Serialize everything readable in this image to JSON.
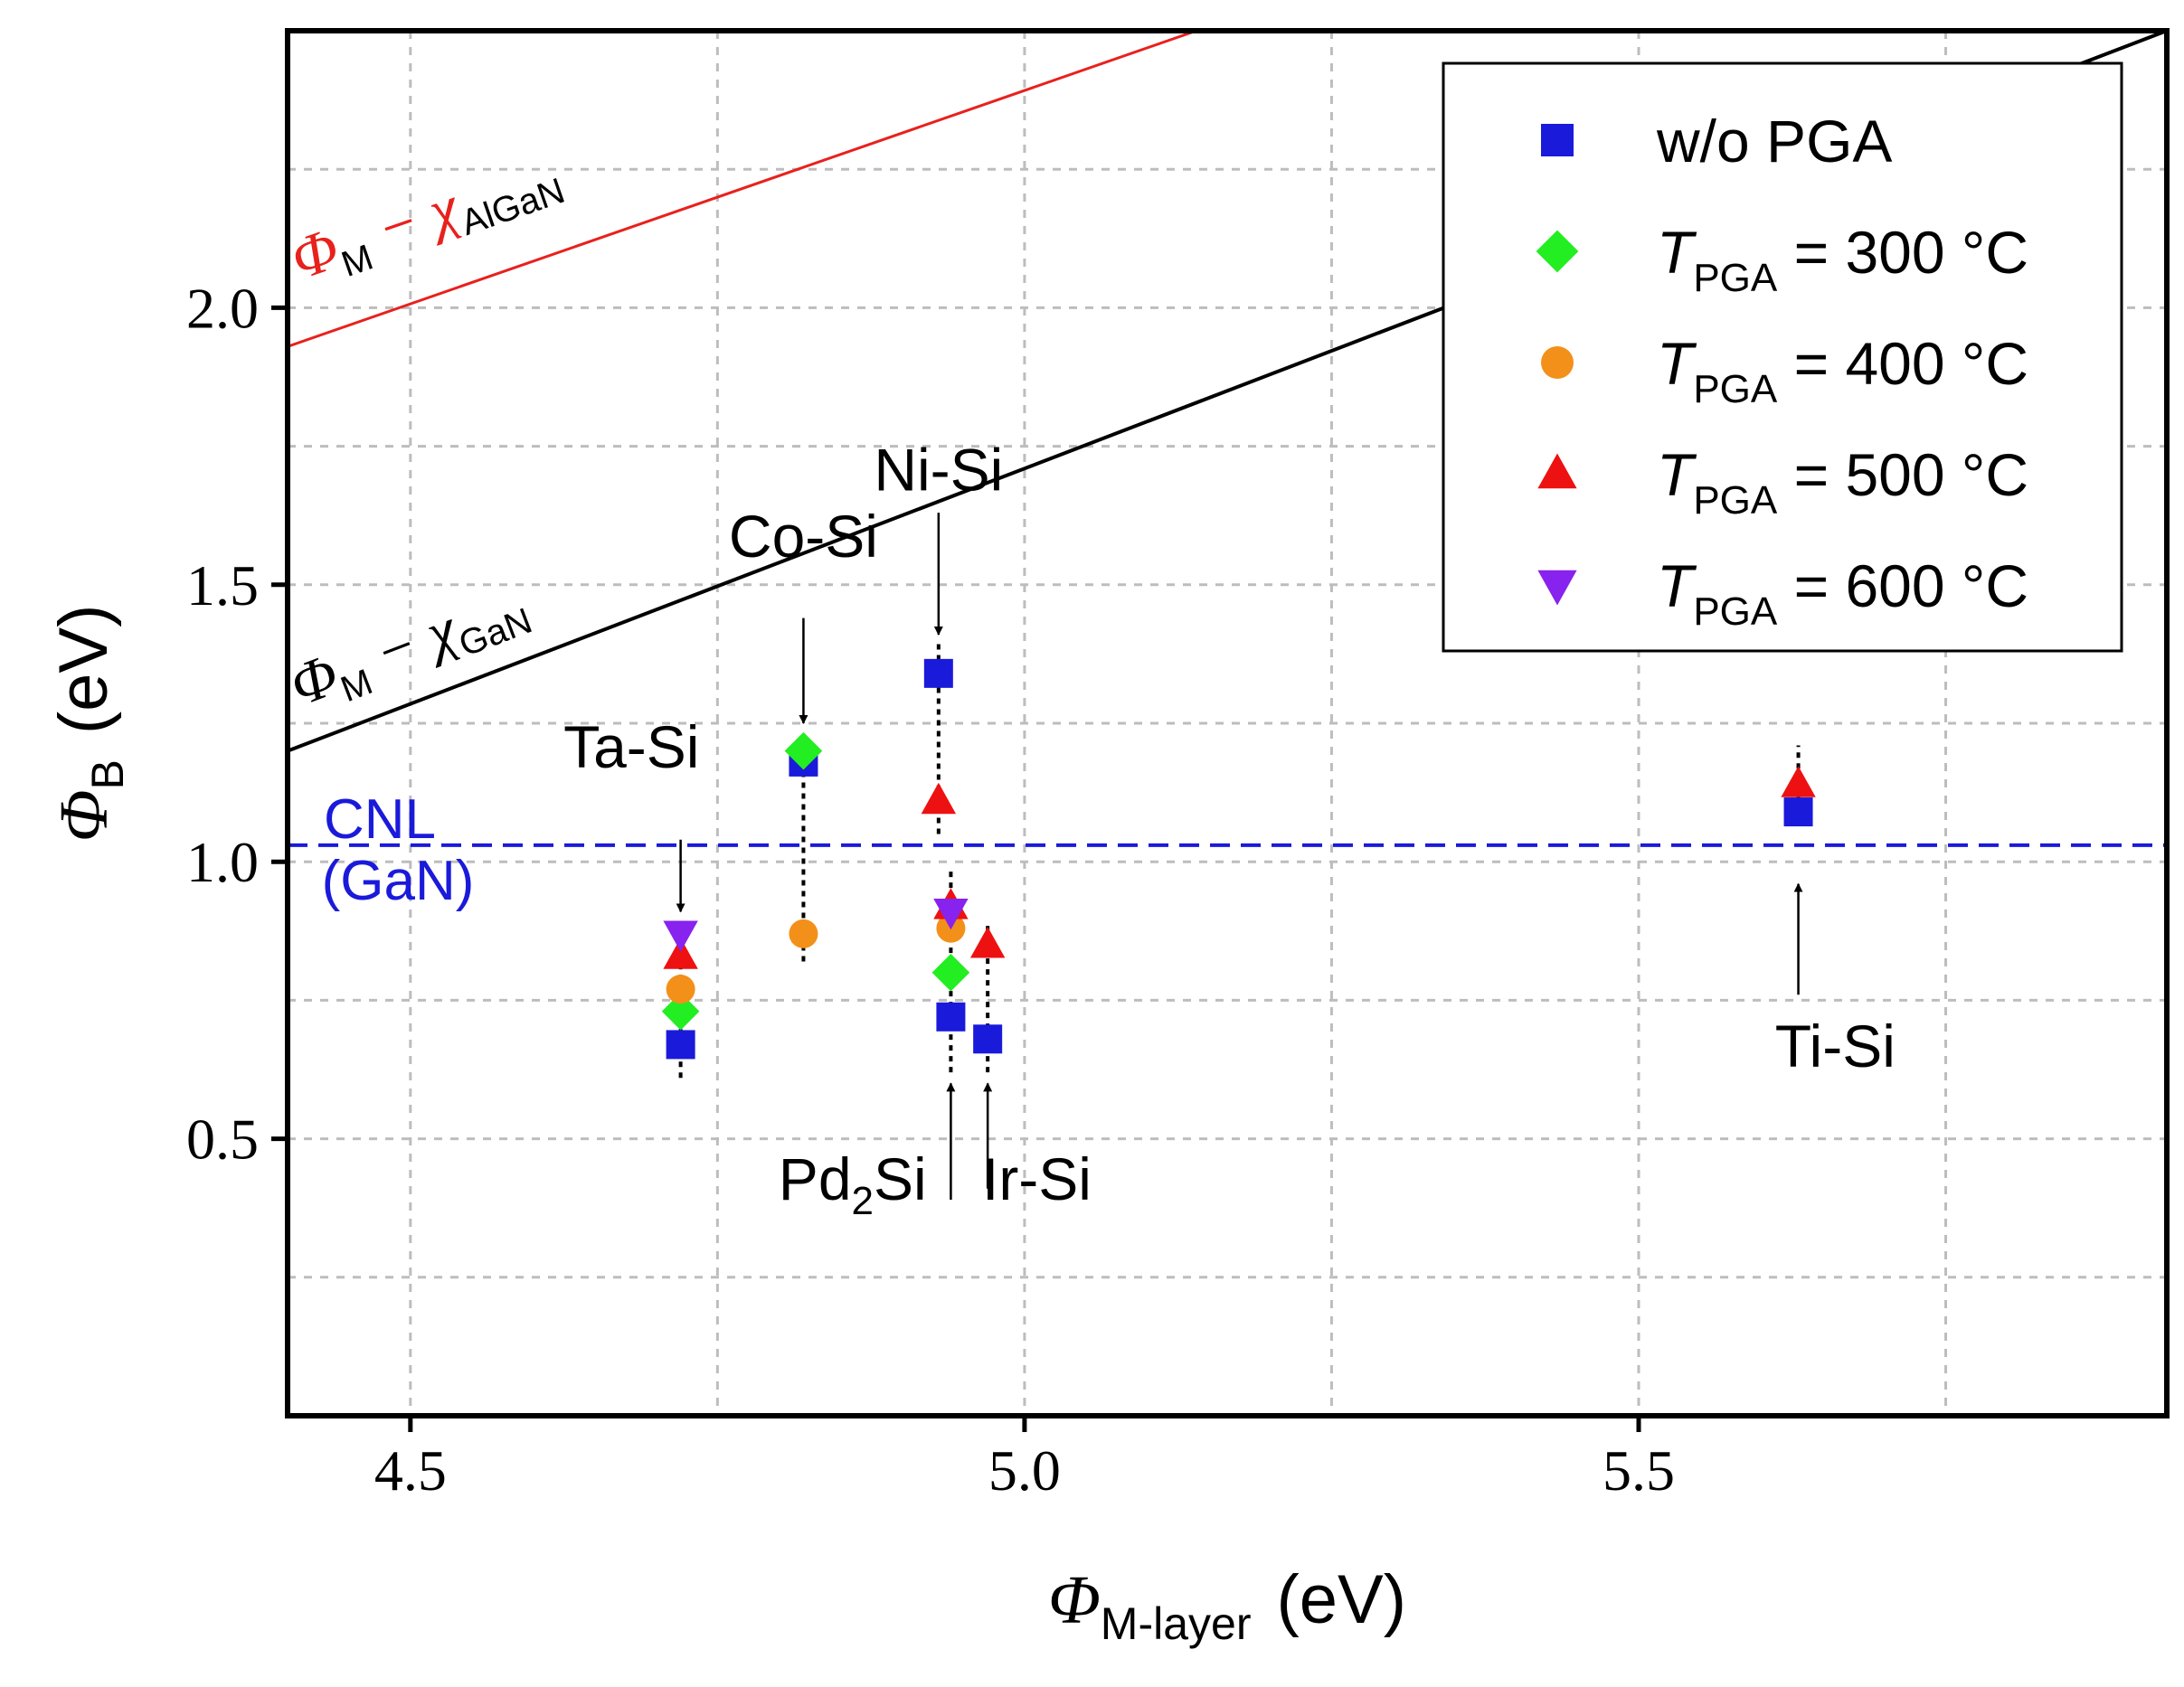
{
  "chart_data": {
    "type": "scatter",
    "xlabel": {
      "symbol": "Φ",
      "sub": "M-layer",
      "unit": "(eV)"
    },
    "ylabel": {
      "symbol": "Φ",
      "sub": "B",
      "unit": "(eV)"
    },
    "xlim": [
      4.4,
      5.93
    ],
    "ylim": [
      0.0,
      2.5
    ],
    "xticks": [
      4.5,
      5.0,
      5.5
    ],
    "xtick_labels": [
      "4.5",
      "5.0",
      "5.5"
    ],
    "xgrid": [
      4.5,
      4.75,
      5.0,
      5.25,
      5.5,
      5.75
    ],
    "yticks": [
      0.5,
      1.0,
      1.5,
      2.0
    ],
    "ytick_labels": [
      "0.5",
      "1.0",
      "1.5",
      "2.0"
    ],
    "ygrid": [
      0.25,
      0.5,
      0.75,
      1.0,
      1.25,
      1.5,
      1.75,
      2.0,
      2.25
    ],
    "grid": true,
    "legend_position": "top-right",
    "series": [
      {
        "name": "w/o PGA",
        "label_T": "",
        "label_sub": "",
        "label_rest": "w/o PGA",
        "marker": "square",
        "color": "#1a1adb",
        "points": [
          [
            4.72,
            0.67
          ],
          [
            4.82,
            1.18
          ],
          [
            4.93,
            1.34
          ],
          [
            4.94,
            0.72
          ],
          [
            4.97,
            0.68
          ],
          [
            5.63,
            1.09
          ]
        ]
      },
      {
        "name": "T_PGA = 300 °C",
        "label_T": "T",
        "label_sub": "PGA",
        "label_rest": " = 300 °C",
        "marker": "diamond",
        "color": "#22ee22",
        "points": [
          [
            4.72,
            0.73
          ],
          [
            4.82,
            1.2
          ],
          [
            4.94,
            0.8
          ]
        ]
      },
      {
        "name": "T_PGA = 400 °C",
        "label_T": "T",
        "label_sub": "PGA",
        "label_rest": " = 400 °C",
        "marker": "circle",
        "color": "#f39019",
        "points": [
          [
            4.72,
            0.77
          ],
          [
            4.82,
            0.87
          ],
          [
            4.94,
            0.88
          ]
        ]
      },
      {
        "name": "T_PGA = 500 °C",
        "label_T": "T",
        "label_sub": "PGA",
        "label_rest": " = 500 °C",
        "marker": "triangle-up",
        "color": "#ee1111",
        "points": [
          [
            4.72,
            0.83
          ],
          [
            4.93,
            1.11
          ],
          [
            4.94,
            0.92
          ],
          [
            4.97,
            0.85
          ],
          [
            5.63,
            1.14
          ]
        ]
      },
      {
        "name": "T_PGA = 600 °C",
        "label_T": "T",
        "label_sub": "PGA",
        "label_rest": " = 600 °C",
        "marker": "triangle-down",
        "color": "#8822ee",
        "points": [
          [
            4.72,
            0.87
          ],
          [
            4.94,
            0.91
          ]
        ]
      }
    ],
    "lines": [
      {
        "name": "phi-m-chi-algan",
        "color": "#e8211d",
        "x": [
          4.4,
          5.14
        ],
        "y": [
          1.93,
          2.5
        ],
        "label_symbol": "Φ",
        "label_sub1": "M",
        "label_mid": " − χ",
        "label_sub2": "AlGaN",
        "label_x": 4.41,
        "label_y": 2.05
      },
      {
        "name": "phi-m-chi-gan",
        "color": "#000000",
        "x": [
          4.4,
          5.93
        ],
        "y": [
          1.2,
          2.5
        ],
        "label_symbol": "Φ",
        "label_sub1": "M",
        "label_mid": " − χ",
        "label_sub2": "GaN",
        "label_x": 4.41,
        "label_y": 1.28
      }
    ],
    "cnl": {
      "value": 1.03,
      "color": "#1a1adb",
      "label_line1": "CNL",
      "label_line2": "(GaN)"
    },
    "dotted_guides": [
      {
        "x": 4.72,
        "y": [
          0.61,
          0.88
        ]
      },
      {
        "x": 4.82,
        "y": [
          0.82,
          1.22
        ]
      },
      {
        "x": 4.93,
        "y": [
          1.05,
          1.4
        ]
      },
      {
        "x": 4.94,
        "y": [
          0.62,
          0.99
        ]
      },
      {
        "x": 4.97,
        "y": [
          0.62,
          0.89
        ]
      },
      {
        "x": 5.63,
        "y": [
          1.07,
          1.21
        ]
      }
    ],
    "annotations": [
      {
        "name": "ta-si",
        "text": "Ta-Si",
        "sub": "",
        "text2": "",
        "tx": 4.68,
        "ty": 1.17,
        "ax1": 4.72,
        "ay1": 1.04,
        "ax2": 4.72,
        "ay2": 0.91
      },
      {
        "name": "co-si",
        "text": "Co-Si",
        "sub": "",
        "text2": "",
        "tx": 4.82,
        "ty": 1.55,
        "ax1": 4.82,
        "ay1": 1.44,
        "ax2": 4.82,
        "ay2": 1.25
      },
      {
        "name": "ni-si",
        "text": "Ni-Si",
        "sub": "",
        "text2": "",
        "tx": 4.93,
        "ty": 1.67,
        "ax1": 4.93,
        "ay1": 1.63,
        "ax2": 4.93,
        "ay2": 1.41
      },
      {
        "name": "pd2si",
        "text": "Pd",
        "sub": "2",
        "text2": "Si",
        "tx": 4.86,
        "ty": 0.39,
        "ax1": 4.94,
        "ay1": 0.39,
        "ax2": 4.94,
        "ay2": 0.6
      },
      {
        "name": "ir-si",
        "text": "Ir-Si",
        "sub": "",
        "text2": "",
        "tx": 5.01,
        "ty": 0.39,
        "ax1": 4.97,
        "ay1": 0.41,
        "ax2": 4.97,
        "ay2": 0.6
      },
      {
        "name": "ti-si",
        "text": "Ti-Si",
        "sub": "",
        "text2": "",
        "tx": 5.66,
        "ty": 0.63,
        "ax1": 5.63,
        "ay1": 0.76,
        "ax2": 5.63,
        "ay2": 0.96
      }
    ]
  }
}
